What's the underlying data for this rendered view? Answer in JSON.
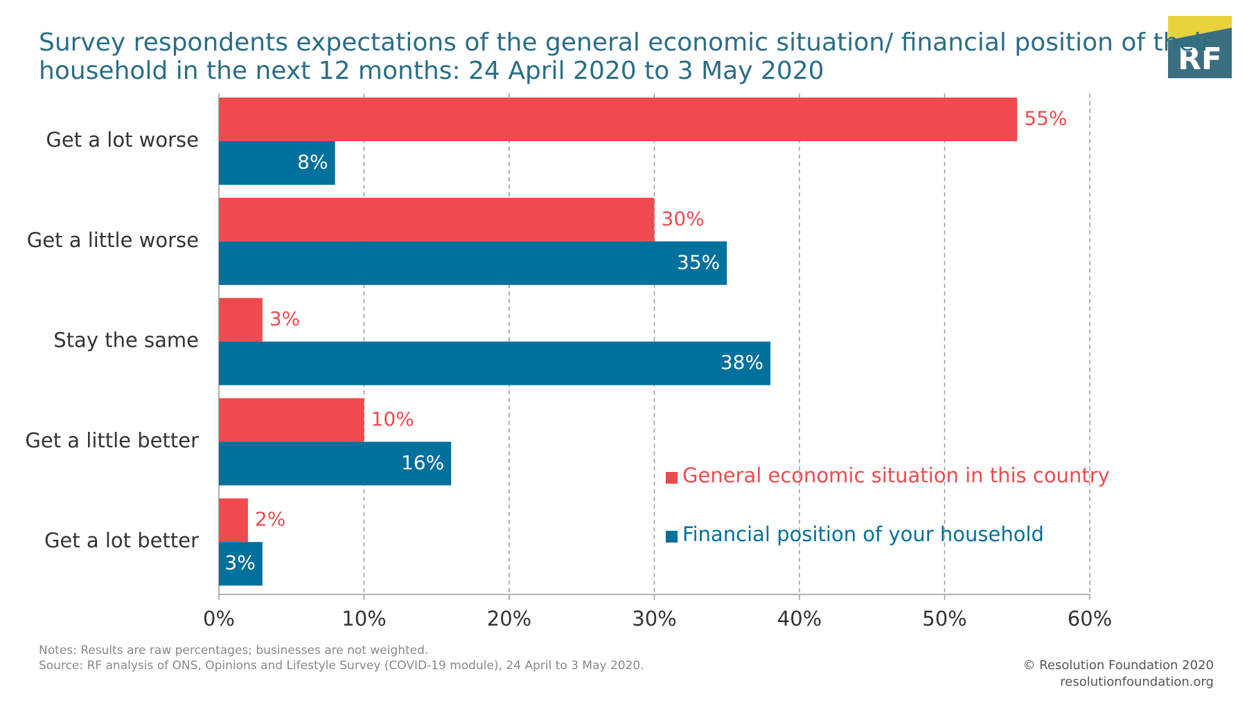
{
  "chart_data": {
    "type": "hbar",
    "title_lines": [
      "Survey respondents expectations of the general economic situation/ financial position of their",
      "household in the next 12 months: 24 April 2020 to 3 May 2020"
    ],
    "categories": [
      "Get a lot worse",
      "Get a little worse",
      "Stay the same",
      "Get a little better",
      "Get a lot better"
    ],
    "series": [
      {
        "name": "General economic situation in this country",
        "color": "#ef4a4f",
        "values": [
          55,
          30,
          3,
          10,
          2
        ],
        "value_labels": [
          "55%",
          "30%",
          "3%",
          "10%",
          "2%"
        ]
      },
      {
        "name": "Financial position of your household",
        "color": "#00709c",
        "values": [
          8,
          35,
          38,
          16,
          3
        ],
        "value_labels": [
          "8%",
          "35%",
          "38%",
          "16%",
          "3%"
        ]
      }
    ],
    "xlim": [
      0,
      60
    ],
    "xticks": [
      {
        "value": 0,
        "label": "0%"
      },
      {
        "value": 10,
        "label": "10%"
      },
      {
        "value": 20,
        "label": "20%"
      },
      {
        "value": 30,
        "label": "30%"
      },
      {
        "value": 40,
        "label": "40%"
      },
      {
        "value": 50,
        "label": "50%"
      },
      {
        "value": 60,
        "label": "60%"
      }
    ],
    "grid": true,
    "notes": "Notes: Results are raw percentages; businesses are not weighted.",
    "source": "Source: RF analysis of ONS, Opinions and Lifestyle Survey (COVID-19 module), 24 April to 3 May 2020.",
    "credit": "© Resolution Foundation 2020",
    "website": "resolutionfoundation.org",
    "logo": "RF"
  }
}
